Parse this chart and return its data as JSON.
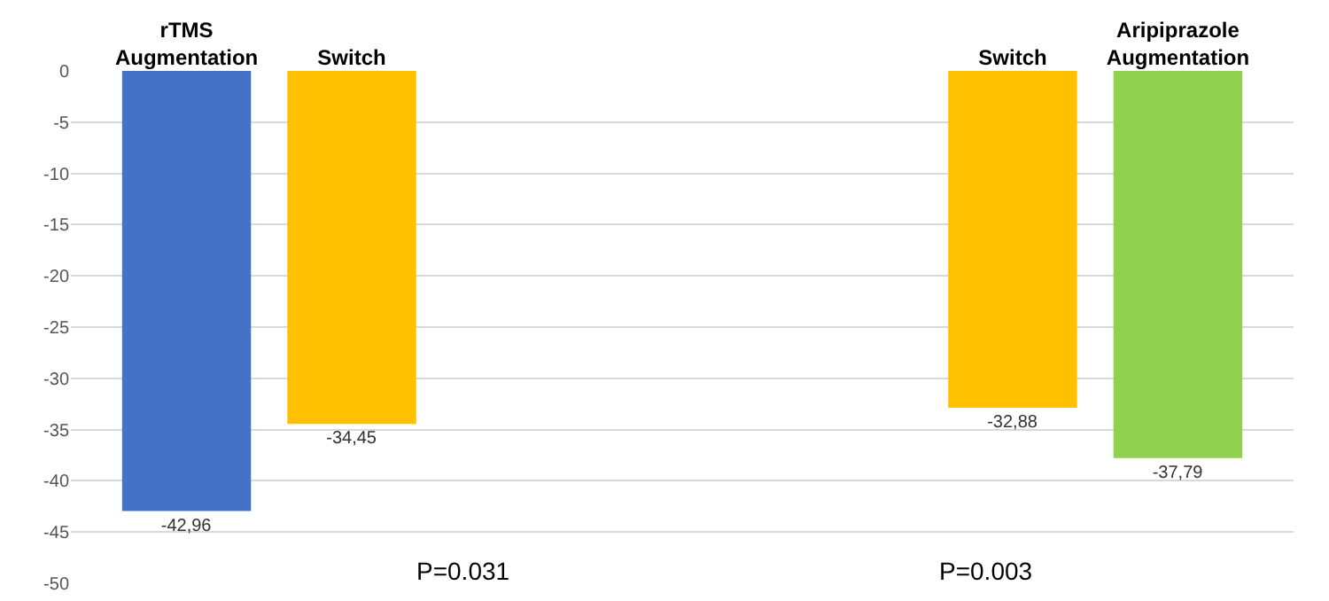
{
  "chart_data": {
    "type": "bar",
    "categories": [
      "rTMS Augmentation",
      "Switch",
      null,
      null,
      null,
      "Switch",
      "Aripiprazole Augmentation"
    ],
    "values": [
      -42.96,
      -34.45,
      null,
      null,
      null,
      -32.88,
      -37.79
    ],
    "colors": [
      "#4472c4",
      "#ffc000",
      null,
      null,
      null,
      "#ffc000",
      "#92d050"
    ],
    "value_labels": [
      "-42,96",
      "-34,45",
      null,
      null,
      null,
      "-32,88",
      "-37,79"
    ],
    "ylim": [
      -50,
      0
    ],
    "yticks": [
      0,
      -5,
      -10,
      -15,
      -20,
      -25,
      -30,
      -35,
      -40,
      -45,
      -50
    ],
    "grid": "y",
    "annotations": [
      "P=0.031",
      "P=0.003"
    ]
  }
}
